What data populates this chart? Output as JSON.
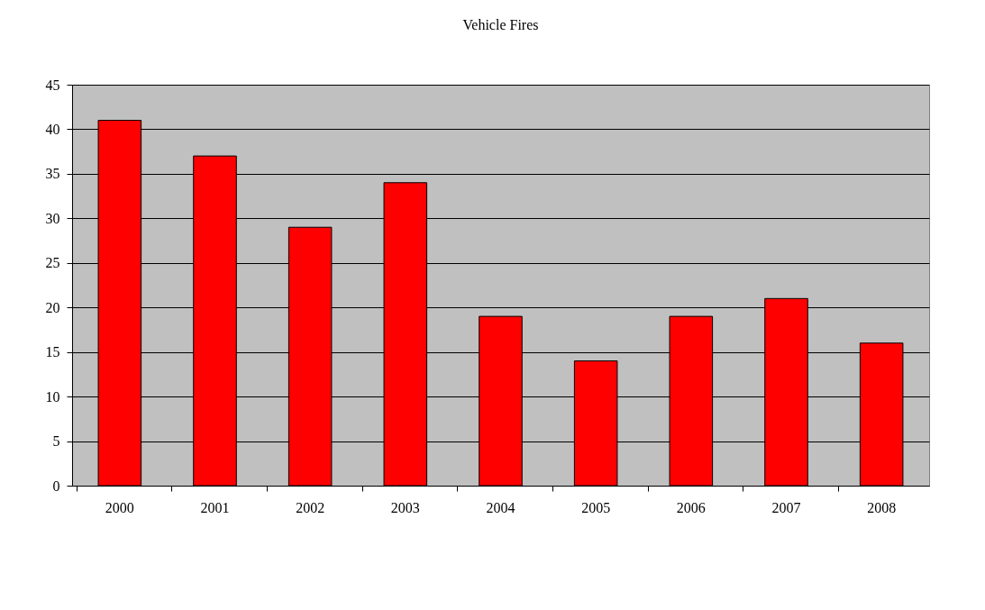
{
  "chart_data": {
    "type": "bar",
    "title": "Vehicle Fires",
    "categories": [
      "2000",
      "2001",
      "2002",
      "2003",
      "2004",
      "2005",
      "2006",
      "2007",
      "2008"
    ],
    "values": [
      41,
      37,
      29,
      34,
      19,
      14,
      19,
      21,
      16
    ],
    "color": "#ff0000",
    "ylim": [
      0,
      45
    ],
    "yticks": [
      0,
      5,
      10,
      15,
      20,
      25,
      30,
      35,
      40,
      45
    ],
    "grid": "y"
  }
}
